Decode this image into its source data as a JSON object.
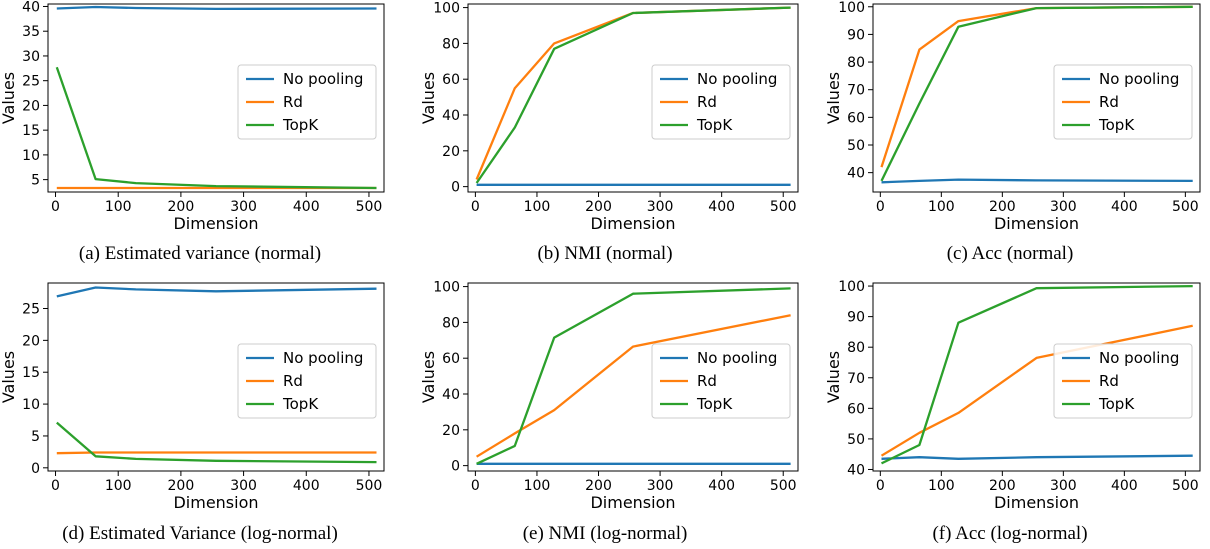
{
  "chart_data": [
    {
      "type": "line",
      "caption": "(a) Estimated variance (normal)",
      "xlabel": "Dimension",
      "ylabel": "Values",
      "xlim": [
        -12,
        524
      ],
      "ylim": [
        2.5,
        40.5
      ],
      "xticks": [
        0,
        100,
        200,
        300,
        400,
        500
      ],
      "yticks": [
        5,
        10,
        15,
        20,
        25,
        30,
        35,
        40
      ],
      "legend": "center-right",
      "series": [
        {
          "name": "No pooling",
          "color": "#1f77b4",
          "x": [
            2,
            64,
            128,
            256,
            512
          ],
          "y": [
            39.6,
            39.9,
            39.7,
            39.5,
            39.6
          ]
        },
        {
          "name": "Rd",
          "color": "#ff7f0e",
          "x": [
            2,
            64,
            128,
            256,
            512
          ],
          "y": [
            3.3,
            3.3,
            3.3,
            3.3,
            3.3
          ]
        },
        {
          "name": "TopK",
          "color": "#2ca02c",
          "x": [
            2,
            64,
            128,
            256,
            512
          ],
          "y": [
            27.7,
            5.1,
            4.3,
            3.7,
            3.3
          ]
        }
      ]
    },
    {
      "type": "line",
      "caption": "(b) NMI (normal)",
      "xlabel": "Dimension",
      "ylabel": "Values",
      "xlim": [
        -12,
        524
      ],
      "ylim": [
        -3,
        102
      ],
      "xticks": [
        0,
        100,
        200,
        300,
        400,
        500
      ],
      "yticks": [
        0,
        20,
        40,
        60,
        80,
        100
      ],
      "legend": "center-right",
      "series": [
        {
          "name": "No pooling",
          "color": "#1f77b4",
          "x": [
            2,
            64,
            128,
            256,
            512
          ],
          "y": [
            1,
            1,
            1,
            1,
            1
          ]
        },
        {
          "name": "Rd",
          "color": "#ff7f0e",
          "x": [
            2,
            64,
            128,
            256,
            512
          ],
          "y": [
            4,
            55,
            80,
            97,
            100
          ]
        },
        {
          "name": "TopK",
          "color": "#2ca02c",
          "x": [
            2,
            64,
            128,
            256,
            512
          ],
          "y": [
            2,
            33,
            77,
            97,
            100
          ]
        }
      ]
    },
    {
      "type": "line",
      "caption": "(c) Acc (normal)",
      "xlabel": "Dimension",
      "ylabel": "Values",
      "xlim": [
        -12,
        524
      ],
      "ylim": [
        33,
        101
      ],
      "xticks": [
        0,
        100,
        200,
        300,
        400,
        500
      ],
      "yticks": [
        40,
        50,
        60,
        70,
        80,
        90,
        100
      ],
      "legend": "center-right",
      "series": [
        {
          "name": "No pooling",
          "color": "#1f77b4",
          "x": [
            2,
            64,
            128,
            256,
            512
          ],
          "y": [
            36.5,
            37,
            37.5,
            37.2,
            37
          ]
        },
        {
          "name": "Rd",
          "color": "#ff7f0e",
          "x": [
            2,
            64,
            128,
            256,
            512
          ],
          "y": [
            42,
            84.5,
            94.8,
            99.5,
            100
          ]
        },
        {
          "name": "TopK",
          "color": "#2ca02c",
          "x": [
            2,
            64,
            128,
            256,
            512
          ],
          "y": [
            37,
            65,
            92.8,
            99.5,
            100
          ]
        }
      ]
    },
    {
      "type": "line",
      "caption": "(d) Estimated Variance (log-normal)",
      "xlabel": "Dimension",
      "ylabel": "Values",
      "xlim": [
        -12,
        524
      ],
      "ylim": [
        -0.5,
        29
      ],
      "xticks": [
        0,
        100,
        200,
        300,
        400,
        500
      ],
      "yticks": [
        0,
        5,
        10,
        15,
        20,
        25
      ],
      "legend": "center-right",
      "series": [
        {
          "name": "No pooling",
          "color": "#1f77b4",
          "x": [
            2,
            64,
            128,
            256,
            512
          ],
          "y": [
            26.9,
            28.3,
            28.0,
            27.7,
            28.1
          ]
        },
        {
          "name": "Rd",
          "color": "#ff7f0e",
          "x": [
            2,
            64,
            128,
            256,
            512
          ],
          "y": [
            2.3,
            2.4,
            2.4,
            2.4,
            2.4
          ]
        },
        {
          "name": "TopK",
          "color": "#2ca02c",
          "x": [
            2,
            64,
            128,
            256,
            512
          ],
          "y": [
            7.1,
            1.8,
            1.4,
            1.1,
            0.9
          ]
        }
      ]
    },
    {
      "type": "line",
      "caption": "(e) NMI (log-normal)",
      "xlabel": "Dimension",
      "ylabel": "Values",
      "xlim": [
        -12,
        524
      ],
      "ylim": [
        -3,
        102
      ],
      "xticks": [
        0,
        100,
        200,
        300,
        400,
        500
      ],
      "yticks": [
        0,
        20,
        40,
        60,
        80,
        100
      ],
      "legend": "center-right",
      "series": [
        {
          "name": "No pooling",
          "color": "#1f77b4",
          "x": [
            2,
            64,
            128,
            256,
            512
          ],
          "y": [
            1,
            1,
            1,
            1,
            1
          ]
        },
        {
          "name": "Rd",
          "color": "#ff7f0e",
          "x": [
            2,
            64,
            128,
            256,
            512
          ],
          "y": [
            5,
            18,
            31,
            66.5,
            84
          ]
        },
        {
          "name": "TopK",
          "color": "#2ca02c",
          "x": [
            2,
            64,
            128,
            256,
            512
          ],
          "y": [
            1,
            11,
            71.5,
            96,
            99
          ]
        }
      ]
    },
    {
      "type": "line",
      "caption": "(f) Acc (log-normal)",
      "xlabel": "Dimension",
      "ylabel": "Values",
      "xlim": [
        -12,
        524
      ],
      "ylim": [
        39.5,
        101
      ],
      "xticks": [
        0,
        100,
        200,
        300,
        400,
        500
      ],
      "yticks": [
        40,
        50,
        60,
        70,
        80,
        90,
        100
      ],
      "legend": "center-right",
      "series": [
        {
          "name": "No pooling",
          "color": "#1f77b4",
          "x": [
            2,
            64,
            128,
            256,
            512
          ],
          "y": [
            43.5,
            44,
            43.5,
            44,
            44.5
          ]
        },
        {
          "name": "Rd",
          "color": "#ff7f0e",
          "x": [
            2,
            64,
            128,
            256,
            512
          ],
          "y": [
            44.5,
            52,
            58.5,
            76.5,
            87
          ]
        },
        {
          "name": "TopK",
          "color": "#2ca02c",
          "x": [
            2,
            64,
            128,
            256,
            512
          ],
          "y": [
            42,
            48,
            88,
            99.3,
            100
          ]
        }
      ]
    }
  ]
}
